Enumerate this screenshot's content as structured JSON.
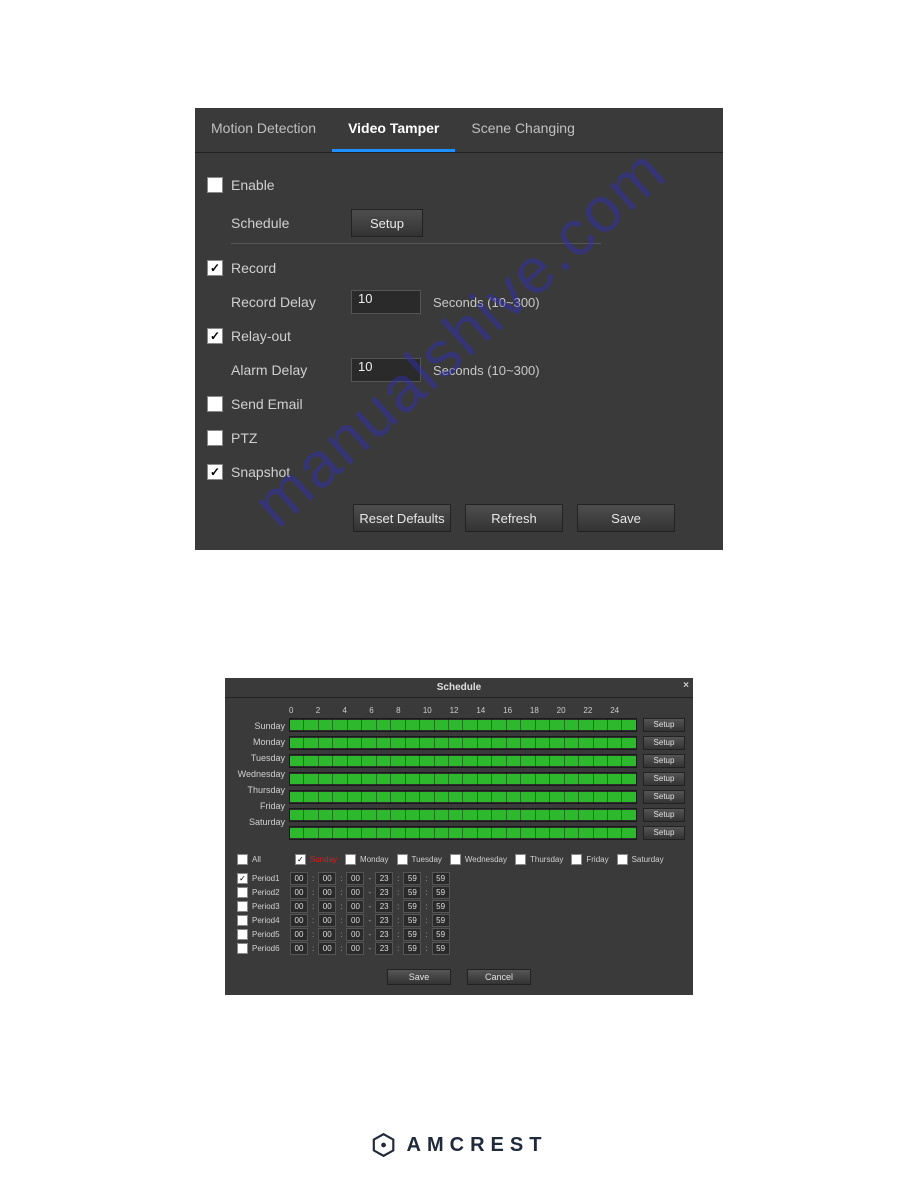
{
  "tabs": {
    "motion": "Motion Detection",
    "tamper": "Video Tamper",
    "scene": "Scene Changing",
    "active": "tamper",
    "accent_color": "#1e90ff"
  },
  "form": {
    "enable": {
      "label": "Enable",
      "checked": false
    },
    "schedule": {
      "label": "Schedule",
      "button": "Setup"
    },
    "record": {
      "label": "Record",
      "checked": true
    },
    "record_delay": {
      "label": "Record Delay",
      "value": "10",
      "hint": "Seconds (10~300)"
    },
    "relay_out": {
      "label": "Relay-out",
      "checked": true
    },
    "alarm_delay": {
      "label": "Alarm Delay",
      "value": "10",
      "hint": "Seconds (10~300)"
    },
    "send_email": {
      "label": "Send Email",
      "checked": false
    },
    "ptz": {
      "label": "PTZ",
      "checked": false
    },
    "snapshot": {
      "label": "Snapshot",
      "checked": true
    },
    "buttons": {
      "reset": "Reset Defaults",
      "refresh": "Refresh",
      "save": "Save"
    }
  },
  "schedule_dialog": {
    "title": "Schedule",
    "hours": [
      "0",
      "2",
      "4",
      "6",
      "8",
      "10",
      "12",
      "14",
      "16",
      "18",
      "20",
      "22",
      "24"
    ],
    "days": [
      "Sunday",
      "Monday",
      "Tuesday",
      "Wednesday",
      "Thursday",
      "Friday",
      "Saturday"
    ],
    "setup_label": "Setup",
    "bar_color": "#2db82d",
    "day_row": {
      "all": "All",
      "all_checked": false,
      "items": [
        {
          "label": "Sunday",
          "checked": true,
          "red": true
        },
        {
          "label": "Monday",
          "checked": false
        },
        {
          "label": "Tuesday",
          "checked": false
        },
        {
          "label": "Wednesday",
          "checked": false
        },
        {
          "label": "Thursday",
          "checked": false
        },
        {
          "label": "Friday",
          "checked": false
        },
        {
          "label": "Saturday",
          "checked": false
        }
      ]
    },
    "periods": [
      {
        "label": "Period1",
        "checked": true,
        "from": [
          "00",
          "00",
          "00"
        ],
        "to": [
          "23",
          "59",
          "59"
        ]
      },
      {
        "label": "Period2",
        "checked": false,
        "from": [
          "00",
          "00",
          "00"
        ],
        "to": [
          "23",
          "59",
          "59"
        ]
      },
      {
        "label": "Period3",
        "checked": false,
        "from": [
          "00",
          "00",
          "00"
        ],
        "to": [
          "23",
          "59",
          "59"
        ]
      },
      {
        "label": "Period4",
        "checked": false,
        "from": [
          "00",
          "00",
          "00"
        ],
        "to": [
          "23",
          "59",
          "59"
        ]
      },
      {
        "label": "Period5",
        "checked": false,
        "from": [
          "00",
          "00",
          "00"
        ],
        "to": [
          "23",
          "59",
          "59"
        ]
      },
      {
        "label": "Period6",
        "checked": false,
        "from": [
          "00",
          "00",
          "00"
        ],
        "to": [
          "23",
          "59",
          "59"
        ]
      }
    ],
    "buttons": {
      "save": "Save",
      "cancel": "Cancel"
    }
  },
  "watermark": "manualshive.com",
  "brand": "AMCREST",
  "colors": {
    "panel_bg": "#3a3a3a",
    "text": "#d0d0d0",
    "brand": "#202a3a"
  }
}
